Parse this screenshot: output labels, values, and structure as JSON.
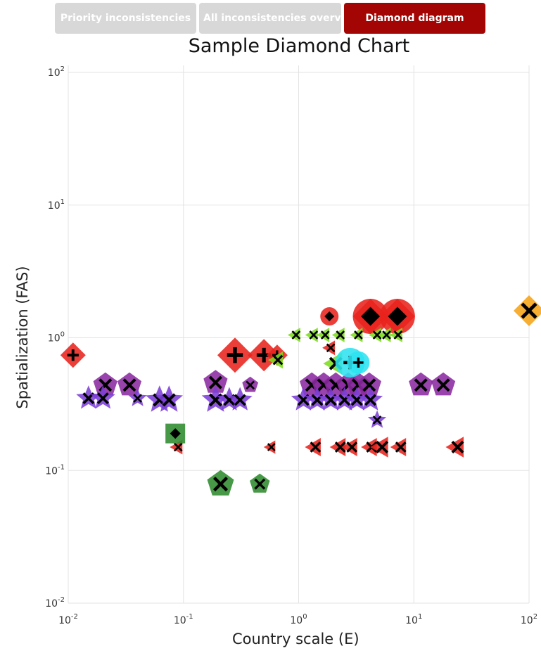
{
  "tabs": [
    {
      "label": "Priority inconsistencies",
      "active": false
    },
    {
      "label": "All inconsistencies overview",
      "active": false
    },
    {
      "label": "Diamond diagram",
      "active": true
    }
  ],
  "colors": {
    "tab_active": "#a30505",
    "tab_inactive": "#d8d8d8",
    "grid": "#e3e3e3",
    "marker_symbol": "#000000"
  },
  "chart_data": {
    "type": "scatter",
    "title": "Sample Diamond Chart",
    "xlabel": "Country scale (E)",
    "ylabel": "Spatialization (FAS)",
    "xscale": "log",
    "yscale": "log",
    "xlim": [
      0.01,
      100
    ],
    "ylim": [
      0.01,
      100
    ],
    "xticks": [
      {
        "base": "10",
        "exp": "-2",
        "value": 0.01
      },
      {
        "base": "10",
        "exp": "-1",
        "value": 0.1
      },
      {
        "base": "10",
        "exp": "0",
        "value": 1
      },
      {
        "base": "10",
        "exp": "1",
        "value": 10
      },
      {
        "base": "10",
        "exp": "2",
        "value": 100
      }
    ],
    "yticks": [
      {
        "base": "10",
        "exp": "-2",
        "value": 0.01
      },
      {
        "base": "10",
        "exp": "-1",
        "value": 0.1
      },
      {
        "base": "10",
        "exp": "0",
        "value": 1
      },
      {
        "base": "10",
        "exp": "1",
        "value": 10
      },
      {
        "base": "10",
        "exp": "2",
        "value": 100
      }
    ],
    "grid": true,
    "series": [
      {
        "color": "#8a2aa0",
        "shape": "pentagon",
        "symbol": "x",
        "points": [
          {
            "x": 0.021,
            "y": 0.44,
            "size": 18
          },
          {
            "x": 0.034,
            "y": 0.44,
            "size": 18
          },
          {
            "x": 0.19,
            "y": 0.46,
            "size": 18
          },
          {
            "x": 0.38,
            "y": 0.44,
            "size": 12
          },
          {
            "x": 1.3,
            "y": 0.44,
            "size": 18
          },
          {
            "x": 1.65,
            "y": 0.44,
            "size": 18
          },
          {
            "x": 2.1,
            "y": 0.44,
            "size": 18
          },
          {
            "x": 2.7,
            "y": 0.44,
            "size": 18
          },
          {
            "x": 3.3,
            "y": 0.44,
            "size": 18
          },
          {
            "x": 4.1,
            "y": 0.44,
            "size": 18
          },
          {
            "x": 11.5,
            "y": 0.44,
            "size": 18
          },
          {
            "x": 18,
            "y": 0.44,
            "size": 18
          }
        ]
      },
      {
        "color": "#7b3fd6",
        "shape": "star",
        "symbol": "x",
        "points": [
          {
            "x": 0.015,
            "y": 0.35,
            "size": 16
          },
          {
            "x": 0.02,
            "y": 0.35,
            "size": 16
          },
          {
            "x": 0.04,
            "y": 0.35,
            "size": 12
          },
          {
            "x": 0.062,
            "y": 0.34,
            "size": 18
          },
          {
            "x": 0.075,
            "y": 0.34,
            "size": 18
          },
          {
            "x": 0.19,
            "y": 0.34,
            "size": 18
          },
          {
            "x": 0.25,
            "y": 0.34,
            "size": 16
          },
          {
            "x": 0.31,
            "y": 0.34,
            "size": 16
          },
          {
            "x": 1.1,
            "y": 0.34,
            "size": 16
          },
          {
            "x": 1.45,
            "y": 0.34,
            "size": 16
          },
          {
            "x": 1.9,
            "y": 0.34,
            "size": 16
          },
          {
            "x": 2.5,
            "y": 0.34,
            "size": 16
          },
          {
            "x": 3.2,
            "y": 0.34,
            "size": 16
          },
          {
            "x": 4.2,
            "y": 0.34,
            "size": 16
          },
          {
            "x": 4.8,
            "y": 0.24,
            "size": 12
          }
        ]
      },
      {
        "color": "#e8231c",
        "shape": "diamond",
        "symbol": "+",
        "points": [
          {
            "x": 0.011,
            "y": 0.74,
            "size": 18
          },
          {
            "x": 0.28,
            "y": 0.74,
            "size": 25
          },
          {
            "x": 0.5,
            "y": 0.74,
            "size": 23
          },
          {
            "x": 0.65,
            "y": 0.74,
            "size": 15
          },
          {
            "x": 4.2,
            "y": 1.45,
            "size": 25
          },
          {
            "x": 7.2,
            "y": 1.45,
            "size": 25
          }
        ]
      },
      {
        "color": "#e8231c",
        "shape": "circle",
        "symbol": "dash",
        "points": [
          {
            "x": 1.85,
            "y": 1.45,
            "size": 13
          },
          {
            "x": 4.2,
            "y": 1.45,
            "size": 25
          },
          {
            "x": 7.2,
            "y": 1.45,
            "size": 25
          }
        ]
      },
      {
        "color": "#e8231c",
        "shape": "triangle-left",
        "symbol": "x",
        "points": [
          {
            "x": 0.09,
            "y": 0.15,
            "size": 12
          },
          {
            "x": 0.58,
            "y": 0.15,
            "size": 11
          },
          {
            "x": 1.4,
            "y": 0.15,
            "size": 15
          },
          {
            "x": 2.3,
            "y": 0.15,
            "size": 15
          },
          {
            "x": 2.9,
            "y": 0.15,
            "size": 15
          },
          {
            "x": 4.3,
            "y": 0.15,
            "size": 15
          },
          {
            "x": 5.3,
            "y": 0.15,
            "size": 17
          },
          {
            "x": 7.7,
            "y": 0.15,
            "size": 15
          },
          {
            "x": 24,
            "y": 0.15,
            "size": 17
          },
          {
            "x": 1.9,
            "y": 0.84,
            "size": 12
          }
        ]
      },
      {
        "color": "#7ddc1f",
        "shape": "triangle-left",
        "symbol": "x",
        "points": [
          {
            "x": 0.95,
            "y": 1.05,
            "size": 12
          },
          {
            "x": 1.35,
            "y": 1.05,
            "size": 12
          },
          {
            "x": 1.7,
            "y": 1.05,
            "size": 12
          },
          {
            "x": 2.3,
            "y": 1.05,
            "size": 12
          },
          {
            "x": 3.3,
            "y": 1.05,
            "size": 12
          },
          {
            "x": 4.8,
            "y": 1.05,
            "size": 12
          },
          {
            "x": 5.8,
            "y": 1.05,
            "size": 12
          },
          {
            "x": 7.3,
            "y": 1.05,
            "size": 12
          },
          {
            "x": 0.66,
            "y": 0.68,
            "size": 14
          },
          {
            "x": 2.1,
            "y": 0.64,
            "size": 18
          }
        ]
      },
      {
        "color": "#2e8b2e",
        "shape": "pentagon",
        "symbol": "x",
        "points": [
          {
            "x": 0.21,
            "y": 0.079,
            "size": 20
          },
          {
            "x": 0.46,
            "y": 0.079,
            "size": 15
          }
        ]
      },
      {
        "color": "#2e8b2e",
        "shape": "square",
        "symbol": "dash",
        "points": [
          {
            "x": 0.085,
            "y": 0.19,
            "size": 14
          }
        ]
      },
      {
        "color": "#2ee3f0",
        "shape": "circle",
        "symbol": "+",
        "points": [
          {
            "x": 2.8,
            "y": 0.65,
            "size": 21
          },
          {
            "x": 3.3,
            "y": 0.65,
            "size": 16
          }
        ]
      },
      {
        "color": "#f5a317",
        "shape": "diamond",
        "symbol": "x",
        "points": [
          {
            "x": 100,
            "y": 1.6,
            "size": 22
          }
        ]
      }
    ]
  }
}
